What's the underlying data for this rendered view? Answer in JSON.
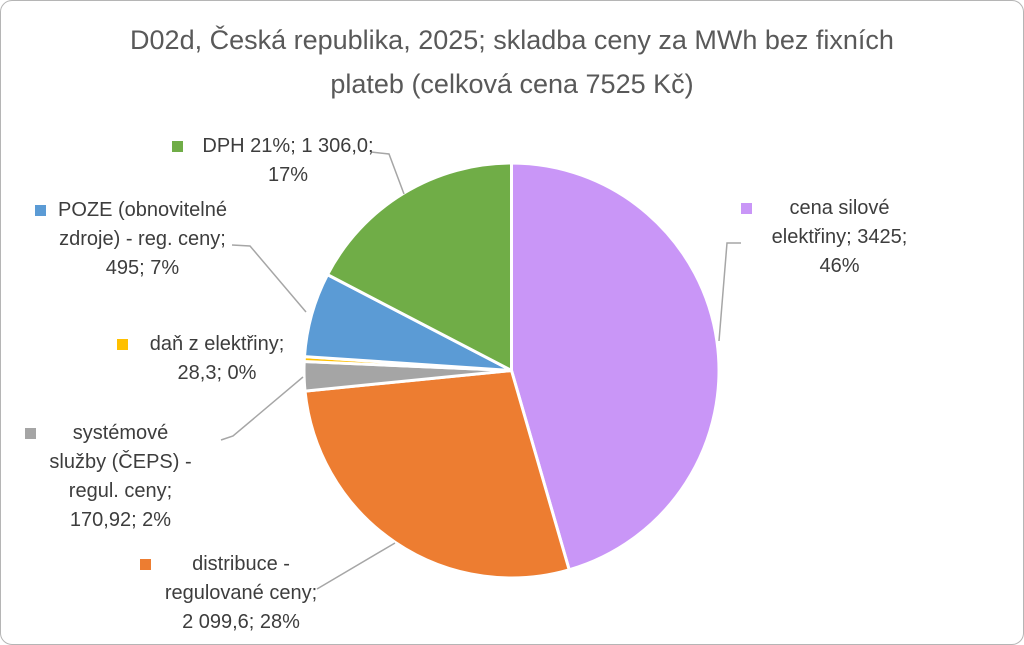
{
  "title": {
    "full": "D02d, Česká republika, 2025; skladba ceny za MWh bez fixních plateb (celková cena 7525 Kč)",
    "line1": "D02d, Česká republika, 2025; skladba ceny za MWh bez fixních",
    "line2": "plateb (celková cena 7525 Kč)"
  },
  "chart_data": {
    "type": "pie",
    "title": "D02d, Česká republika, 2025; skladba ceny za MWh bez fixních plateb (celková cena 7525 Kč)",
    "total": 7525,
    "total_label": "celková cena 7525 Kč",
    "unit": "Kč/MWh",
    "start_angle_deg": 0,
    "direction": "clockwise",
    "legend_position": "data-labels-outside",
    "slices": [
      {
        "id": "cena-silove",
        "name": "cena silové elektřiny",
        "value": 3425,
        "value_label": "3425",
        "percent": 46,
        "color": "#c996f7"
      },
      {
        "id": "distribuce",
        "name": "distribuce - regulované ceny",
        "value": 2099.6,
        "value_label": "2 099,6",
        "percent": 28,
        "color": "#ed7d31"
      },
      {
        "id": "systemove-sluzby",
        "name": "systémové služby (ČEPS) - regul. ceny",
        "value": 170.92,
        "value_label": "170,92",
        "percent": 2,
        "color": "#a5a5a5"
      },
      {
        "id": "dan-z-elektriny",
        "name": "daň z elektřiny",
        "value": 28.3,
        "value_label": "28,3",
        "percent": 0,
        "color": "#ffc000"
      },
      {
        "id": "poze",
        "name": "POZE (obnovitelné zdroje) - reg. ceny",
        "value": 495,
        "value_label": "495",
        "percent": 7,
        "color": "#5b9bd5"
      },
      {
        "id": "dph",
        "name": "DPH 21%",
        "value": 1306.0,
        "value_label": "1 306,0",
        "percent": 17,
        "color": "#70ad47"
      }
    ]
  },
  "labels": {
    "dph": {
      "color": "#70ad47",
      "lines": [
        "DPH 21%; 1 306,0;",
        "17%"
      ]
    },
    "poze": {
      "color": "#5b9bd5",
      "lines": [
        "POZE (obnovitelné",
        "zdroje) - reg. ceny;",
        "495; 7%"
      ]
    },
    "dan": {
      "color": "#ffc000",
      "lines": [
        "daň z elektřiny;",
        "28,3; 0%"
      ]
    },
    "system": {
      "color": "#a5a5a5",
      "lines": [
        "systémové",
        "služby (ČEPS) -",
        "regul. ceny;",
        "170,92; 2%"
      ]
    },
    "distribuce": {
      "color": "#ed7d31",
      "lines": [
        "distribuce -",
        "regulované ceny;",
        "2 099,6; 28%"
      ]
    },
    "cena": {
      "color": "#c996f7",
      "lines": [
        "cena silové",
        "elektřiny; 3425;",
        "46%"
      ]
    }
  }
}
